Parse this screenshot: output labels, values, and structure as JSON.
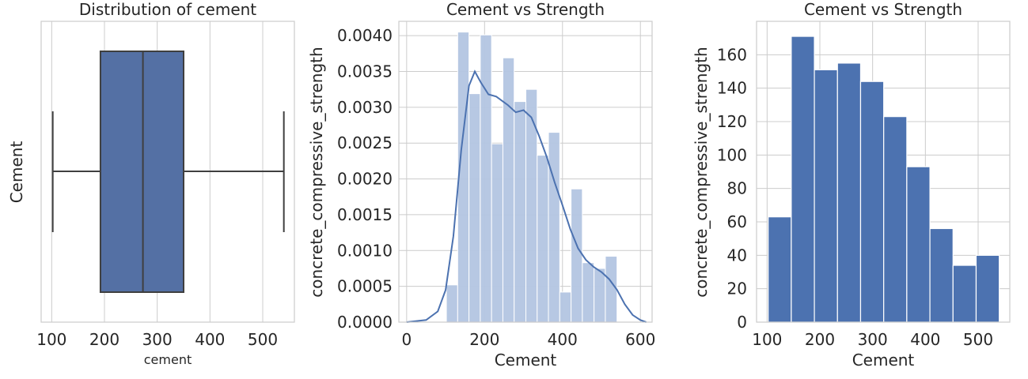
{
  "chart_data": [
    {
      "type": "box",
      "title": "Distribution of cement",
      "xlabel": "cement",
      "ylabel": "Cement",
      "xlim": [
        80,
        560
      ],
      "xticks": [
        100,
        200,
        300,
        400,
        500
      ],
      "grid": true,
      "color": "#5470a4",
      "box": {
        "whisker_low": 102,
        "q1": 192.4,
        "median": 272.9,
        "q3": 350,
        "whisker_high": 540
      }
    },
    {
      "type": "histogram",
      "title": "Cement vs Strength",
      "xlabel": "Cement",
      "ylabel": "concrete_compressive_strength",
      "xlim": [
        -20,
        630
      ],
      "ylim": [
        0,
        0.0042
      ],
      "xticks": [
        0,
        200,
        400,
        600
      ],
      "yticks": [
        "0.0000",
        "0.0005",
        "0.0010",
        "0.0015",
        "0.0020",
        "0.0025",
        "0.0030",
        "0.0035",
        "0.0040"
      ],
      "grid": true,
      "bar_color": "#b3c5e2",
      "line_color": "#4c72b0",
      "bins": [
        {
          "x0": 102,
          "x1": 131,
          "density": 0.00052
        },
        {
          "x0": 131,
          "x1": 160,
          "density": 0.00405
        },
        {
          "x0": 160,
          "x1": 189,
          "density": 0.00319
        },
        {
          "x0": 189,
          "x1": 218,
          "density": 0.00401
        },
        {
          "x0": 218,
          "x1": 247,
          "density": 0.00249
        },
        {
          "x0": 247,
          "x1": 276,
          "density": 0.00369
        },
        {
          "x0": 276,
          "x1": 306,
          "density": 0.00308
        },
        {
          "x0": 306,
          "x1": 335,
          "density": 0.00325
        },
        {
          "x0": 335,
          "x1": 364,
          "density": 0.00233
        },
        {
          "x0": 364,
          "x1": 393,
          "density": 0.00265
        },
        {
          "x0": 393,
          "x1": 422,
          "density": 0.00042
        },
        {
          "x0": 422,
          "x1": 451,
          "density": 0.00186
        },
        {
          "x0": 451,
          "x1": 481,
          "density": 0.00083
        },
        {
          "x0": 481,
          "x1": 510,
          "density": 0.00075
        },
        {
          "x0": 510,
          "x1": 540,
          "density": 0.00092
        }
      ],
      "kde": {
        "x": [
          0,
          50,
          80,
          100,
          120,
          140,
          160,
          175,
          190,
          210,
          230,
          260,
          280,
          300,
          320,
          340,
          360,
          380,
          400,
          420,
          440,
          460,
          480,
          500,
          520,
          540,
          560,
          580,
          600,
          615
        ],
        "y": [
          0,
          3e-05,
          0.00015,
          0.00045,
          0.0012,
          0.0024,
          0.0033,
          0.0035,
          0.00335,
          0.00318,
          0.00315,
          0.00303,
          0.00293,
          0.00296,
          0.00286,
          0.0026,
          0.0023,
          0.00195,
          0.00163,
          0.0013,
          0.00103,
          0.00087,
          0.00077,
          0.0007,
          0.0006,
          0.00045,
          0.00025,
          0.0001,
          3e-05,
          0
        ]
      }
    },
    {
      "type": "histogram",
      "title": "Cement vs Strength",
      "xlabel": "Cement",
      "ylabel": "concrete_compressive_strength",
      "xlim": [
        80,
        560
      ],
      "ylim": [
        0,
        180
      ],
      "xticks": [
        100,
        200,
        300,
        400,
        500
      ],
      "yticks": [
        0,
        20,
        40,
        60,
        80,
        100,
        120,
        140,
        160
      ],
      "grid": true,
      "bar_color": "#4c72b0",
      "bins": [
        {
          "x0": 102,
          "x1": 145.8,
          "count": 63
        },
        {
          "x0": 145.8,
          "x1": 189.6,
          "count": 171
        },
        {
          "x0": 189.6,
          "x1": 233.4,
          "count": 151
        },
        {
          "x0": 233.4,
          "x1": 277.2,
          "count": 155
        },
        {
          "x0": 277.2,
          "x1": 321,
          "count": 144
        },
        {
          "x0": 321,
          "x1": 364.8,
          "count": 123
        },
        {
          "x0": 364.8,
          "x1": 408.6,
          "count": 93
        },
        {
          "x0": 408.6,
          "x1": 452.4,
          "count": 56
        },
        {
          "x0": 452.4,
          "x1": 496.2,
          "count": 34
        },
        {
          "x0": 496.2,
          "x1": 540,
          "count": 40
        }
      ]
    }
  ]
}
